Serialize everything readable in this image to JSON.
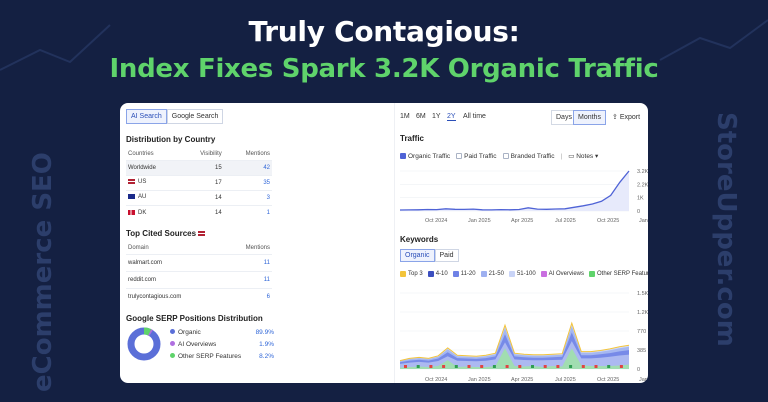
{
  "headline": {
    "line1": "Truly Contagious:",
    "line2": "Index Fixes Spark 3.2K Organic Traffic"
  },
  "side_text": {
    "left": "eCommerce SEO",
    "right": "StoreUpper.com"
  },
  "colors": {
    "background": "#142042",
    "headline_green": "#5fd36b",
    "accent_blue": "#4f63d6"
  },
  "left": {
    "tabs": [
      {
        "label": "AI Search",
        "active": true
      },
      {
        "label": "Google Search",
        "active": false
      }
    ],
    "distribution": {
      "title": "Distribution by Country",
      "headers": {
        "countries": "Countries",
        "visibility": "Visibility",
        "mentions": "Mentions"
      },
      "rows": [
        {
          "country": "Worldwide",
          "flag": "",
          "visibility": "15",
          "mentions": "42"
        },
        {
          "country": "US",
          "flag": "us",
          "visibility": "17",
          "mentions": "35"
        },
        {
          "country": "AU",
          "flag": "au",
          "visibility": "14",
          "mentions": "3"
        },
        {
          "country": "DK",
          "flag": "dk",
          "visibility": "14",
          "mentions": "1"
        }
      ]
    },
    "cited": {
      "title": "Top Cited Sources",
      "headers": {
        "domain": "Domain",
        "mentions": "Mentions"
      },
      "rows": [
        {
          "domain": "walmart.com",
          "mentions": "11"
        },
        {
          "domain": "reddit.com",
          "mentions": "11"
        },
        {
          "domain": "trulycontagious.com",
          "mentions": "6"
        }
      ]
    },
    "serp": {
      "title": "Google SERP Positions Distribution",
      "items": [
        {
          "label": "Organic",
          "value": "89.9%",
          "color": "#5b6fd8"
        },
        {
          "label": "AI Overviews",
          "value": "1.9%",
          "color": "#b06fe0"
        },
        {
          "label": "Other SERP Features",
          "value": "8.2%",
          "color": "#5fd36b"
        }
      ]
    }
  },
  "right": {
    "time_ranges": [
      {
        "label": "1M",
        "active": false
      },
      {
        "label": "6M",
        "active": false
      },
      {
        "label": "1Y",
        "active": false
      },
      {
        "label": "2Y",
        "active": true
      },
      {
        "label": "All time",
        "active": false
      }
    ],
    "granularity": [
      {
        "label": "Days",
        "active": false
      },
      {
        "label": "Months",
        "active": true
      }
    ],
    "export_label": "Export",
    "traffic": {
      "title": "Traffic",
      "legend": [
        {
          "label": "Organic Traffic",
          "checked": true
        },
        {
          "label": "Paid Traffic",
          "checked": false
        },
        {
          "label": "Branded Traffic",
          "checked": false
        }
      ],
      "notes_label": "Notes"
    },
    "keywords": {
      "title": "Keywords",
      "tabs": [
        {
          "label": "Organic",
          "active": true
        },
        {
          "label": "Paid",
          "active": false
        }
      ],
      "legend": [
        {
          "label": "Top 3",
          "color": "#f3c43a"
        },
        {
          "label": "4-10",
          "color": "#3c4fbf"
        },
        {
          "label": "11-20",
          "color": "#6f82e6"
        },
        {
          "label": "21-50",
          "color": "#9eb0f0"
        },
        {
          "label": "51-100",
          "color": "#c9d4f7"
        },
        {
          "label": "AI Overviews",
          "color": "#c96fe0"
        },
        {
          "label": "Other SERP Features",
          "color": "#5fd36b"
        }
      ]
    }
  },
  "chart_data": [
    {
      "type": "line",
      "title": "Traffic",
      "series": [
        {
          "name": "Organic Traffic",
          "x": [
            "2024-05",
            "2024-06",
            "2024-07",
            "2024-08",
            "2024-09",
            "2024-10",
            "2024-11",
            "2024-12",
            "2025-01",
            "2025-02",
            "2025-03",
            "2025-04",
            "2025-05",
            "2025-06",
            "2025-07",
            "2025-08",
            "2025-09",
            "2025-10",
            "2025-11",
            "2025-12",
            "2026-01",
            "2026-02",
            "2026-03",
            "2026-04",
            "2026-05",
            "2026-06"
          ],
          "values": [
            80,
            90,
            100,
            120,
            110,
            180,
            140,
            130,
            150,
            100,
            90,
            110,
            100,
            120,
            260,
            150,
            140,
            160,
            180,
            300,
            420,
            560,
            780,
            1250,
            2300,
            3200
          ]
        }
      ],
      "x_ticks": [
        "Oct 2024",
        "Jan 2025",
        "Apr 2025",
        "Jul 2025",
        "Oct 2025",
        "Jan 2026",
        "Apr 2026"
      ],
      "y_ticks": [
        "3.2K",
        "2.2K",
        "1K",
        "0"
      ],
      "ylim": [
        0,
        3200
      ],
      "grid": true
    },
    {
      "type": "area",
      "title": "Keywords",
      "x_ticks": [
        "Oct 2024",
        "Jan 2025",
        "Apr 2025",
        "Jul 2025",
        "Oct 2025",
        "Jan 2026",
        "Apr 2026"
      ],
      "y_ticks": [
        "1.5K",
        "1.2K",
        "770",
        "385",
        "0"
      ],
      "ylim": [
        0,
        1540
      ],
      "series": [
        {
          "name": "Other SERP Features",
          "values": [
            30,
            40,
            50,
            40,
            60,
            180,
            40,
            50,
            40,
            40,
            60,
            420,
            60,
            50,
            60,
            40,
            60,
            50,
            420,
            80,
            60,
            60,
            60,
            70,
            90
          ]
        },
        {
          "name": "51-100",
          "values": [
            130,
            160,
            180,
            160,
            200,
            330,
            220,
            210,
            200,
            210,
            240,
            700,
            240,
            230,
            220,
            220,
            230,
            230,
            700,
            280,
            280,
            300,
            320,
            360,
            400
          ]
        }
      ],
      "stack_top": [
        160,
        200,
        220,
        200,
        250,
        400,
        260,
        250,
        240,
        260,
        300,
        830,
        300,
        280,
        270,
        270,
        280,
        290,
        870,
        330,
        330,
        350,
        380,
        420,
        450
      ]
    }
  ]
}
